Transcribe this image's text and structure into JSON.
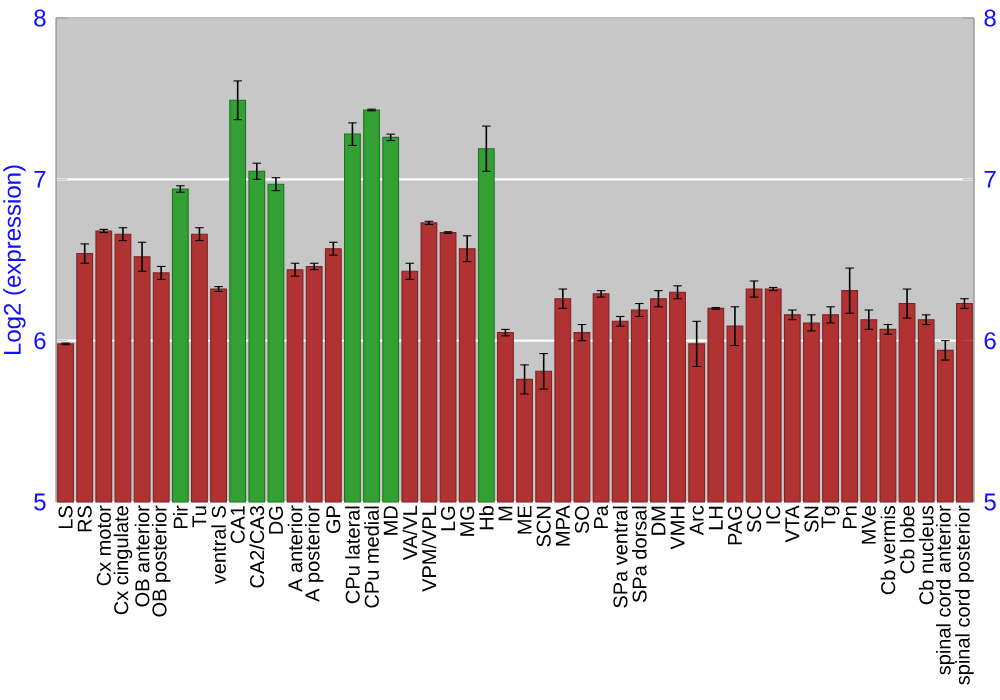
{
  "chart_data": {
    "type": "bar",
    "ylabel": "Log2 (expression)",
    "categories": [
      "LS",
      "RS",
      "Cx motor",
      "Cx cingulate",
      "OB anterior",
      "OB posterior",
      "Pir",
      "Tu",
      "ventral S",
      "CA1",
      "CA2/CA3",
      "DG",
      "A anterior",
      "A posterior",
      "GP",
      "CPu lateral",
      "CPu medial",
      "MD",
      "VA/VL",
      "VPM/VPL",
      "LG",
      "MG",
      "Hb",
      "M",
      "ME",
      "SCN",
      "MPA",
      "SO",
      "Pa",
      "SPa ventral",
      "SPa dorsal",
      "DM",
      "VMH",
      "Arc",
      "LH",
      "PAG",
      "SC",
      "IC",
      "VTA",
      "SN",
      "Tg",
      "Pn",
      "MVe",
      "Cb vermis",
      "Cb lobe",
      "Cb nucleus",
      "spinal cord anterior",
      "spinal cord posterior"
    ],
    "values": [
      5.98,
      6.54,
      6.68,
      6.66,
      6.52,
      6.42,
      6.94,
      6.66,
      6.32,
      7.49,
      7.05,
      6.97,
      6.44,
      6.46,
      6.57,
      7.28,
      7.43,
      7.26,
      6.43,
      6.73,
      6.67,
      6.57,
      7.19,
      6.05,
      5.76,
      5.81,
      6.26,
      6.05,
      6.29,
      6.12,
      6.19,
      6.26,
      6.3,
      5.98,
      6.2,
      6.09,
      6.32,
      6.32,
      6.16,
      6.11,
      6.16,
      6.31,
      6.13,
      6.07,
      6.23,
      6.13,
      5.94,
      6.23
    ],
    "errors": [
      0.005,
      0.06,
      0.01,
      0.04,
      0.09,
      0.04,
      0.02,
      0.04,
      0.015,
      0.12,
      0.05,
      0.04,
      0.04,
      0.02,
      0.04,
      0.07,
      0.005,
      0.02,
      0.05,
      0.01,
      0.005,
      0.08,
      0.14,
      0.02,
      0.09,
      0.11,
      0.06,
      0.05,
      0.02,
      0.03,
      0.04,
      0.05,
      0.04,
      0.14,
      0.005,
      0.12,
      0.05,
      0.01,
      0.03,
      0.05,
      0.05,
      0.14,
      0.06,
      0.03,
      0.09,
      0.03,
      0.06,
      0.03
    ],
    "colors": [
      "#b03232",
      "#b03232",
      "#b03232",
      "#b03232",
      "#b03232",
      "#b03232",
      "#32a032",
      "#b03232",
      "#b03232",
      "#32a032",
      "#32a032",
      "#32a032",
      "#b03232",
      "#b03232",
      "#b03232",
      "#32a032",
      "#32a032",
      "#32a032",
      "#b03232",
      "#b03232",
      "#b03232",
      "#b03232",
      "#32a032",
      "#b03232",
      "#b03232",
      "#b03232",
      "#b03232",
      "#b03232",
      "#b03232",
      "#b03232",
      "#b03232",
      "#b03232",
      "#b03232",
      "#b03232",
      "#b03232",
      "#b03232",
      "#b03232",
      "#b03232",
      "#b03232",
      "#b03232",
      "#b03232",
      "#b03232",
      "#b03232",
      "#b03232",
      "#b03232",
      "#b03232",
      "#b03232",
      "#b03232"
    ],
    "ylim": [
      5,
      8
    ],
    "yticks": [
      5,
      6,
      7,
      8
    ],
    "y2lim": [
      5,
      8
    ],
    "y2ticks": [
      5,
      6,
      7,
      8
    ],
    "grid": "y"
  }
}
